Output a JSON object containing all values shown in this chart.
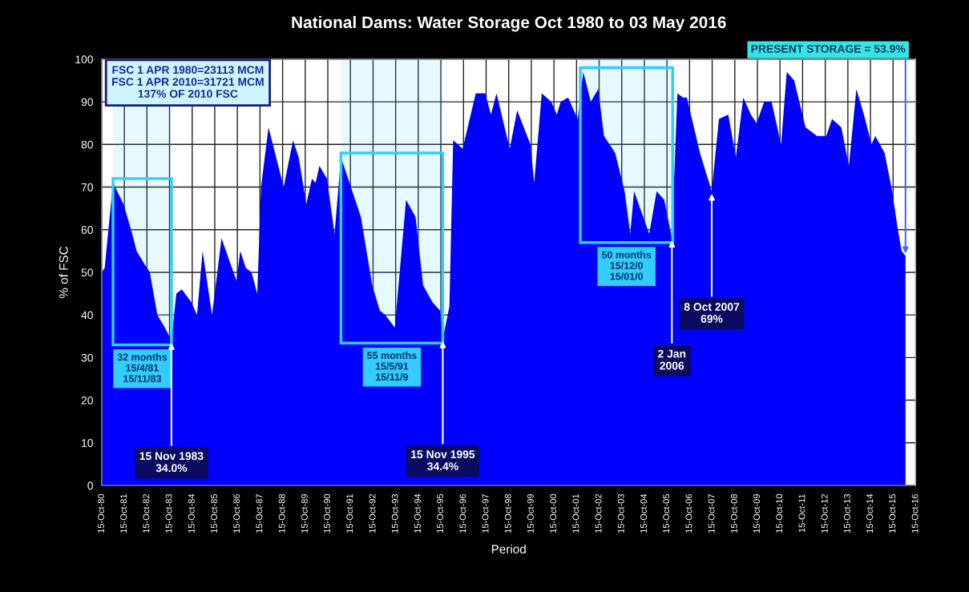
{
  "chart_data": {
    "type": "area",
    "title": "National Dams: Water Storage Oct 1980 to 03 May 2016",
    "xlabel": "Period",
    "ylabel": "% of FSC",
    "x": [
      "1980-10-15",
      "1980-12",
      "1981-04-15",
      "1981-10",
      "1982-02",
      "1982-05",
      "1982-09",
      "1982-12",
      "1983-04",
      "1983-08",
      "1983-11-15",
      "1984-02",
      "1984-05",
      "1984-10",
      "1985-01",
      "1985-04",
      "1985-09",
      "1986-02",
      "1986-06",
      "1986-10",
      "1986-12",
      "1987-03",
      "1987-06",
      "1987-09",
      "1987-11",
      "1988-03",
      "1988-11",
      "1989-04",
      "1989-07",
      "1989-11",
      "1990-02",
      "1990-04",
      "1990-06",
      "1990-10",
      "1991-02",
      "1991-05-15",
      "1992-04",
      "1992-10",
      "1993-02",
      "1993-05",
      "1993-10",
      "1994-04",
      "1994-09",
      "1995-01",
      "1995-06",
      "1995-10",
      "1995-11-15",
      "1996-03",
      "1996-05",
      "1996-10",
      "1997-05",
      "1997-10",
      "1998-01",
      "1998-04",
      "1998-11",
      "1999-03",
      "1999-10",
      "1999-12",
      "2000-04",
      "2000-09",
      "2000-12",
      "2001-02",
      "2001-06",
      "2001-11",
      "2002-02",
      "2002-06",
      "2002-10",
      "2003-01",
      "2003-07",
      "2003-12",
      "2004-03",
      "2004-05",
      "2005-01",
      "2005-05",
      "2005-09",
      "2006-01-02",
      "2006-04",
      "2006-07",
      "2006-09",
      "2007-04",
      "2007-10-08",
      "2008-02",
      "2008-07",
      "2008-11",
      "2009-03",
      "2009-07",
      "2009-10",
      "2010-02",
      "2010-06",
      "2010-11",
      "2011-02",
      "2011-06",
      "2011-12",
      "2012-06",
      "2012-11",
      "2013-02",
      "2013-07",
      "2013-11",
      "2014-03",
      "2014-07",
      "2014-11",
      "2015-01",
      "2015-06",
      "2015-10",
      "2016-01",
      "2016-03",
      "2016-05-03"
    ],
    "series": [
      {
        "color": "#0000ff",
        "values": [
          50,
          51,
          71,
          66,
          60,
          55,
          52,
          50,
          40,
          37,
          34.0,
          45,
          46,
          43,
          40,
          55,
          40,
          58,
          53,
          48,
          55,
          51,
          50,
          45,
          70,
          84,
          70,
          81,
          77,
          66,
          72,
          71,
          75,
          72,
          59,
          77,
          63,
          47,
          41,
          40,
          37,
          67,
          63,
          47,
          43,
          41,
          34.4,
          42,
          81,
          79,
          92,
          92,
          87,
          92,
          79,
          88,
          80,
          71,
          92,
          90,
          87,
          90,
          91,
          86,
          97,
          90,
          93,
          82,
          78,
          69,
          59,
          69,
          59,
          69,
          67,
          58,
          92,
          91,
          91,
          78,
          69,
          86,
          87,
          77,
          91,
          87,
          85,
          90,
          90,
          80,
          97,
          95,
          84,
          82,
          82,
          86,
          84,
          75,
          93,
          87,
          80,
          82,
          78,
          69,
          60,
          55,
          53.9
        ]
      }
    ],
    "xlim": [
      "1980-10-15",
      "2016-10-15"
    ],
    "xticks": [
      {
        "value": "1980-10-15",
        "label": "15-Oct-80"
      },
      {
        "value": "1981-10-15",
        "label": "15-Oct-81"
      },
      {
        "value": "1982-10-15",
        "label": "15-Oct-82"
      },
      {
        "value": "1983-10-15",
        "label": "15-Oct-83"
      },
      {
        "value": "1984-10-15",
        "label": "15-Oct-84"
      },
      {
        "value": "1985-10-15",
        "label": "15-Oct-85"
      },
      {
        "value": "1986-10-15",
        "label": "15-Oct-86"
      },
      {
        "value": "1987-10-15",
        "label": "15-Oct-87"
      },
      {
        "value": "1988-10-15",
        "label": "15-Oct-88"
      },
      {
        "value": "1989-10-15",
        "label": "15-Oct-89"
      },
      {
        "value": "1990-10-15",
        "label": "15-Oct-90"
      },
      {
        "value": "1991-10-15",
        "label": "15-Oct-91"
      },
      {
        "value": "1992-10-15",
        "label": "15-Oct-92"
      },
      {
        "value": "1993-10-15",
        "label": "15-Oct-93"
      },
      {
        "value": "1994-10-15",
        "label": "15-Oct-94"
      },
      {
        "value": "1995-10-15",
        "label": "15-Oct-95"
      },
      {
        "value": "1996-10-15",
        "label": "15-Oct-96"
      },
      {
        "value": "1997-10-15",
        "label": "15-Oct-97"
      },
      {
        "value": "1998-10-15",
        "label": "15-Oct-98"
      },
      {
        "value": "1999-10-15",
        "label": "15-Oct-99"
      },
      {
        "value": "2000-10-15",
        "label": "15-Oct-00"
      },
      {
        "value": "2001-10-15",
        "label": "15-Oct-01"
      },
      {
        "value": "2002-10-15",
        "label": "15-Oct-02"
      },
      {
        "value": "2003-10-15",
        "label": "15-Oct-03"
      },
      {
        "value": "2004-10-15",
        "label": "15-Oct-04"
      },
      {
        "value": "2005-10-15",
        "label": "15-Oct-05"
      },
      {
        "value": "2006-10-15",
        "label": "15-Oct-06"
      },
      {
        "value": "2007-10-15",
        "label": "15-Oct-07"
      },
      {
        "value": "2008-10-15",
        "label": "15-Oct-08"
      },
      {
        "value": "2009-10-15",
        "label": "15-Oct-09"
      },
      {
        "value": "2010-10-15",
        "label": "15-Oct-10"
      },
      {
        "value": "2011-10-15",
        "label": "15-Oct-11"
      },
      {
        "value": "2012-10-15",
        "label": "15-Oct-12"
      },
      {
        "value": "2013-10-15",
        "label": "15-Oct-13"
      },
      {
        "value": "2014-10-15",
        "label": "15-Oct-14"
      },
      {
        "value": "2015-10-15",
        "label": "15-Oct-15"
      },
      {
        "value": "2016-10-15",
        "label": "15-Oct-16"
      }
    ],
    "ylim": [
      0,
      100
    ],
    "yticks": [
      0,
      10,
      20,
      30,
      40,
      50,
      60,
      70,
      80,
      90,
      100
    ],
    "grid": true,
    "bands": [
      {
        "axis": "x",
        "from": "1981-04-15",
        "to": "1983-11-15",
        "label": "32 months\n15/4/81\n15/11/83",
        "color": "#33ccff"
      },
      {
        "axis": "x",
        "from": "1991-05-15",
        "to": "1995-11-15",
        "label": "55 months\n15/5/91\n15/11/9",
        "color": "#33ccff"
      },
      {
        "axis": "x",
        "from": "2001-12-15",
        "to": "2006-01-15",
        "label": "50 months\n15/12/0\n15/01/0",
        "color": "#33ccff"
      }
    ],
    "annotations": [
      "FSC 1 APR 1980=23113 MCM\nFSC 1 APR 2010=31721 MCM\n137% OF 2010 FSC",
      {
        "text": "15 Nov 1983\n34.0%",
        "x": "1983-11-15",
        "y": 34.0
      },
      {
        "text": "15 Nov 1995\n34.4%",
        "x": "1995-11-15",
        "y": 34.4
      },
      {
        "text": "2 Jan\n2006",
        "x": "2006-01-02",
        "y": 58
      },
      {
        "text": "8 Oct 2007\n69%",
        "x": "2007-10-08",
        "y": 69
      },
      {
        "text": "PRESENT STORAGE = 53.9%",
        "x": "2016-05-03",
        "y": 53.9
      }
    ]
  }
}
